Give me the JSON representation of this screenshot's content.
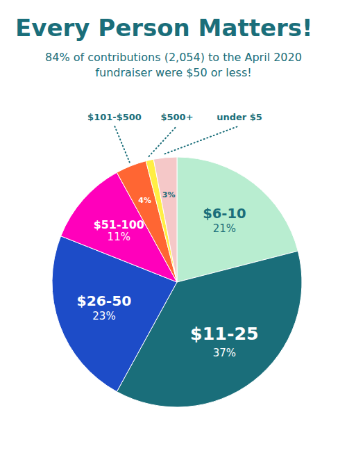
{
  "chart_data": {
    "type": "pie",
    "title": "Every Person Matters!",
    "subtitle": [
      "84% of contributions (2,054) to the April 2020",
      "fundraiser were $50 or less!"
    ],
    "categories": [
      "$6-10",
      "$11-25",
      "$26-50",
      "$51-100",
      "$101-$500",
      "$500+",
      "under $5"
    ],
    "values": [
      21,
      37,
      23,
      11,
      4,
      1,
      3
    ],
    "value_labels": [
      "21%",
      "37%",
      "23%",
      "11%",
      "4%",
      null,
      "3%"
    ],
    "colors": [
      "#b8edd0",
      "#1a6e7a",
      "#1d4cc8",
      "#ff00bb",
      "#ff6633",
      "#ffee44",
      "#f5c8c8"
    ],
    "data_labels": true
  }
}
